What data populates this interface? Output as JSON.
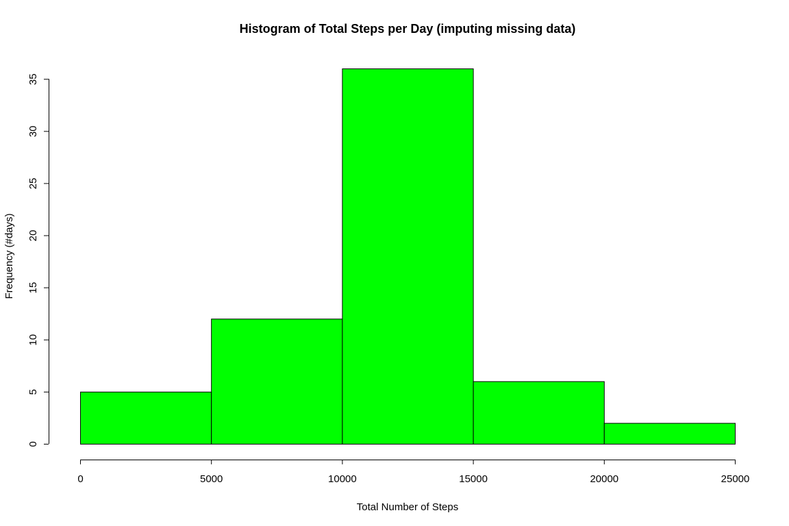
{
  "chart_data": {
    "type": "histogram",
    "title": "Histogram of Total Steps per Day (imputing missing data)",
    "xlabel": "Total Number of Steps",
    "ylabel": "Frequency (#days)",
    "bin_edges": [
      0,
      5000,
      10000,
      15000,
      20000,
      25000
    ],
    "bins": [
      {
        "from": 0,
        "to": 5000,
        "count": 5
      },
      {
        "from": 5000,
        "to": 10000,
        "count": 12
      },
      {
        "from": 10000,
        "to": 15000,
        "count": 36
      },
      {
        "from": 15000,
        "to": 20000,
        "count": 6
      },
      {
        "from": 20000,
        "to": 25000,
        "count": 2
      }
    ],
    "xlim": [
      0,
      25000
    ],
    "ylim": [
      0,
      36
    ],
    "x_ticks": [
      "0",
      "5000",
      "10000",
      "15000",
      "20000",
      "25000"
    ],
    "x_tick_values": [
      0,
      5000,
      10000,
      15000,
      20000,
      25000
    ],
    "y_ticks": [
      "0",
      "5",
      "10",
      "15",
      "20",
      "25",
      "30",
      "35"
    ],
    "y_tick_values": [
      0,
      5,
      10,
      15,
      20,
      25,
      30,
      35
    ],
    "bar_color": "#00ff00",
    "bar_border_color": "#000000",
    "grid": false
  }
}
